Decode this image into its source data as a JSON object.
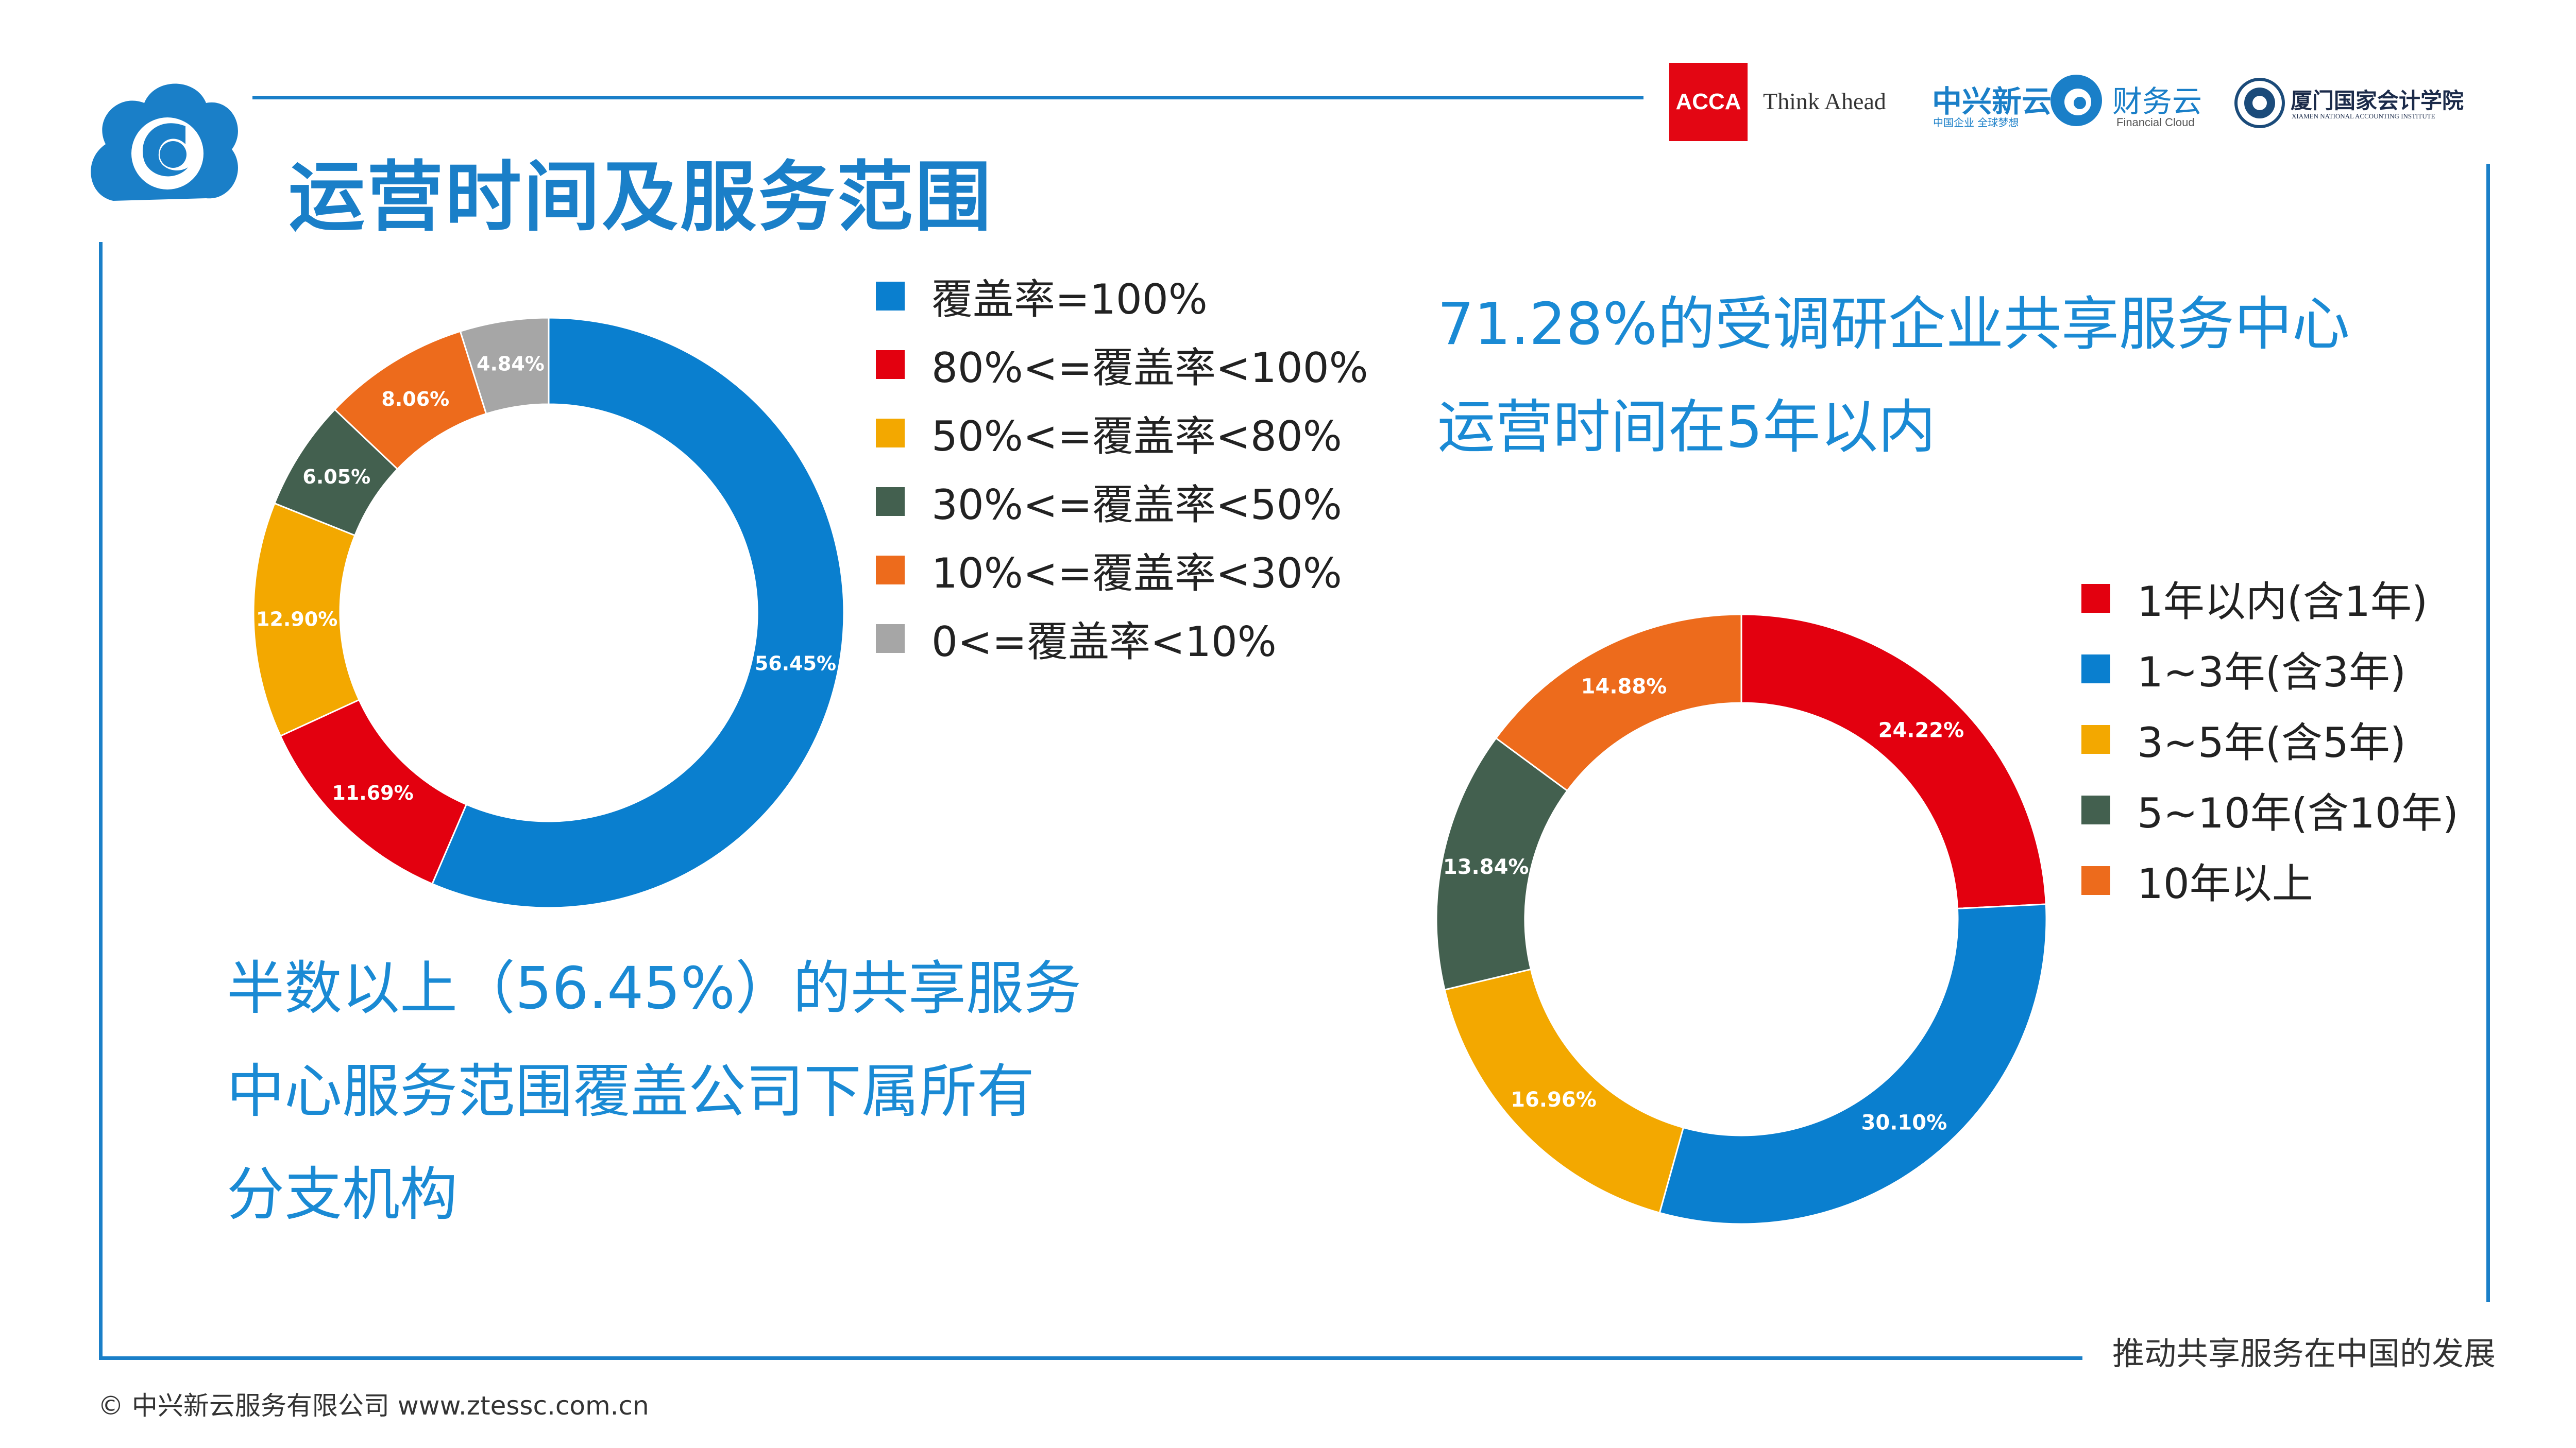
{
  "title": "运营时间及服务范围",
  "header_logos": {
    "acca_mark": "ACCA",
    "acca_slogan": "Think Ahead",
    "zte_name": "中兴新云",
    "zte_tagline": "中国企业 全球梦想",
    "cloud_name": "财务云",
    "cloud_sub": "Financial Cloud",
    "xnai_name": "厦门国家会计学院",
    "xnai_sub": "XIAMEN NATIONAL ACCOUNTING INSTITUTE"
  },
  "colors": {
    "brand_blue": "#1a7fc8",
    "caption_blue": "#1a8ad4",
    "acca_red": "#e30613"
  },
  "captions": {
    "left_lines": [
      "半数以上（56.45%）的共享服务",
      "中心服务范围覆盖公司下属所有",
      "分支机构"
    ],
    "right_lines": [
      "71.28%的受调研企业共享服务中心",
      "运营时间在5年以内"
    ]
  },
  "footer": {
    "copyright": "© 中兴新云服务有限公司  www.ztessc.com.cn",
    "slogan": "推动共享服务在中国的发展"
  },
  "chart_data": [
    {
      "type": "pie",
      "donut": true,
      "title": "",
      "legend_position": "right",
      "categories": [
        "覆盖率=100%",
        "80%<=覆盖率<100%",
        "50%<=覆盖率<80%",
        "30%<=覆盖率<50%",
        "10%<=覆盖率<30%",
        "0<=覆盖率<10%"
      ],
      "values": [
        56.45,
        11.69,
        12.9,
        6.05,
        8.06,
        4.84
      ],
      "labels": [
        "56.45%",
        "11.69%",
        "12.90%",
        "6.05%",
        "8.06%",
        "4.84%"
      ],
      "colors": [
        "#0a7fcf",
        "#e3000f",
        "#f3a800",
        "#43604f",
        "#ed6b1c",
        "#a6a6a6"
      ]
    },
    {
      "type": "pie",
      "donut": true,
      "title": "",
      "legend_position": "right",
      "categories": [
        "1年以内(含1年)",
        "1~3年(含3年)",
        "3~5年(含5年)",
        "5~10年(含10年)",
        "10年以上"
      ],
      "values": [
        24.22,
        30.1,
        16.96,
        13.84,
        14.88
      ],
      "labels": [
        "24.22%",
        "30.10%",
        "16.96%",
        "13.84%",
        "14.88%"
      ],
      "colors": [
        "#e3000f",
        "#0a7fcf",
        "#f3a800",
        "#43604f",
        "#ed6b1c"
      ]
    }
  ]
}
